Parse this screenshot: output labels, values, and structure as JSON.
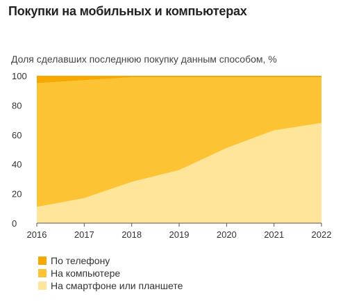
{
  "chart_data": {
    "type": "area",
    "stacked": true,
    "title": "Покупки на мобильных и компьютерах",
    "subtitle": "Доля сделавших последнюю покупку данным способом, %",
    "x": [
      "2016",
      "2017",
      "2018",
      "2019",
      "2020",
      "2021",
      "2022"
    ],
    "series": [
      {
        "name": "На смартфоне или планшете",
        "color": "#fee59a",
        "values": [
          11,
          17,
          28,
          36,
          51,
          63,
          68
        ]
      },
      {
        "name": "На компьютере",
        "color": "#fcc434",
        "values": [
          84,
          80,
          71,
          63,
          48,
          36,
          31
        ]
      },
      {
        "name": "По телефону",
        "color": "#f6a800",
        "values": [
          5,
          3,
          1,
          1,
          1,
          1,
          1
        ]
      }
    ],
    "yticks": [
      "0",
      "20",
      "40",
      "60",
      "80",
      "100"
    ],
    "ylim": [
      0,
      100
    ],
    "legend_order": [
      "По телефону",
      "На компьютере",
      "На смартфоне или планшете"
    ],
    "legend_position": "bottom-left",
    "grid": false
  }
}
